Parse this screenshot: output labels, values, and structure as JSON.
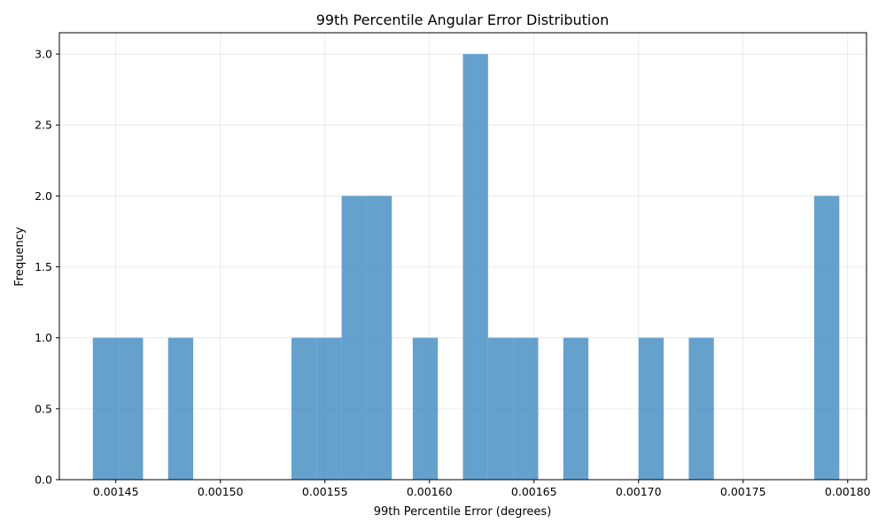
{
  "chart_data": {
    "type": "bar",
    "title": "99th Percentile Angular Error Distribution",
    "xlabel": "99th Percentile Error (degrees)",
    "ylabel": "Frequency",
    "xlim": [
      0.001423,
      0.001809
    ],
    "ylim": [
      0.0,
      3.15
    ],
    "grid": true,
    "bar_color": "#4a90c4",
    "bar_opacity": 0.85,
    "bins": [
      {
        "x0": 0.001439,
        "x1": 0.001451,
        "count": 1
      },
      {
        "x0": 0.001451,
        "x1": 0.001463,
        "count": 1
      },
      {
        "x0": 0.001475,
        "x1": 0.001487,
        "count": 1
      },
      {
        "x0": 0.001534,
        "x1": 0.001546,
        "count": 1
      },
      {
        "x0": 0.001546,
        "x1": 0.001558,
        "count": 1
      },
      {
        "x0": 0.001558,
        "x1": 0.00157,
        "count": 2
      },
      {
        "x0": 0.00157,
        "x1": 0.001582,
        "count": 2
      },
      {
        "x0": 0.001592,
        "x1": 0.001604,
        "count": 1
      },
      {
        "x0": 0.001616,
        "x1": 0.001628,
        "count": 3
      },
      {
        "x0": 0.001628,
        "x1": 0.00164,
        "count": 1
      },
      {
        "x0": 0.00164,
        "x1": 0.001652,
        "count": 1
      },
      {
        "x0": 0.001664,
        "x1": 0.001676,
        "count": 1
      },
      {
        "x0": 0.0017,
        "x1": 0.001712,
        "count": 1
      },
      {
        "x0": 0.001724,
        "x1": 0.001736,
        "count": 1
      },
      {
        "x0": 0.001784,
        "x1": 0.001796,
        "count": 2
      }
    ],
    "x_ticks": [
      {
        "value": 0.00145,
        "label": "0.00145"
      },
      {
        "value": 0.0015,
        "label": "0.00150"
      },
      {
        "value": 0.00155,
        "label": "0.00155"
      },
      {
        "value": 0.0016,
        "label": "0.00160"
      },
      {
        "value": 0.00165,
        "label": "0.00165"
      },
      {
        "value": 0.0017,
        "label": "0.00170"
      },
      {
        "value": 0.00175,
        "label": "0.00175"
      },
      {
        "value": 0.0018,
        "label": "0.00180"
      }
    ],
    "y_ticks": [
      {
        "value": 0.0,
        "label": "0.0"
      },
      {
        "value": 0.5,
        "label": "0.5"
      },
      {
        "value": 1.0,
        "label": "1.0"
      },
      {
        "value": 1.5,
        "label": "1.5"
      },
      {
        "value": 2.0,
        "label": "2.0"
      },
      {
        "value": 2.5,
        "label": "2.5"
      },
      {
        "value": 3.0,
        "label": "3.0"
      }
    ]
  }
}
